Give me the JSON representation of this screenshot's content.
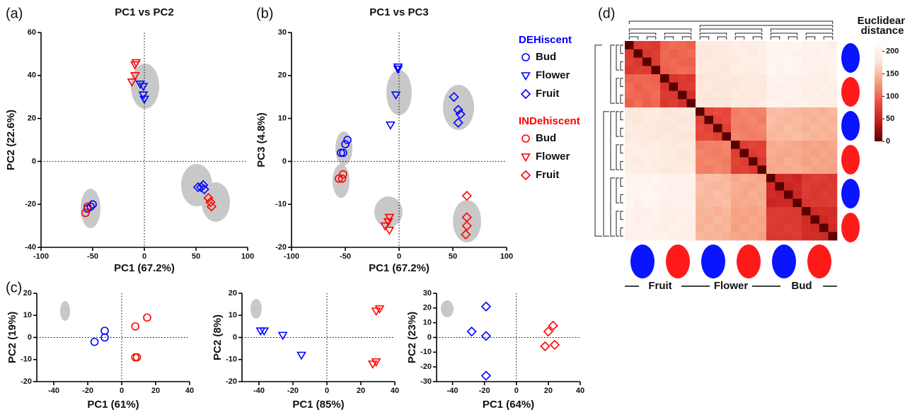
{
  "chart_data": [
    {
      "type": "scatter",
      "panel": "(a)",
      "title": "PC1 vs PC2",
      "x_label": "PC1 (67.2%)",
      "y_label": "PC2 (22.6%)",
      "xlim": [
        -100,
        100
      ],
      "xticks": [
        -100,
        -50,
        0,
        50,
        100
      ],
      "ylim": [
        -40,
        60
      ],
      "yticks": [
        -40,
        -20,
        0,
        20,
        40,
        60
      ],
      "zero_lines": true,
      "series": [
        {
          "color": "#0000ff",
          "marker": "circle",
          "x": [
            -55,
            -52,
            -50
          ],
          "y": [
            -22,
            -21,
            -20
          ]
        },
        {
          "color": "#0000ff",
          "marker": "triangle",
          "x": [
            -4,
            -1,
            -1,
            0
          ],
          "y": [
            36,
            35,
            31,
            29
          ]
        },
        {
          "color": "#0000ff",
          "marker": "diamond",
          "x": [
            52,
            55,
            57,
            58
          ],
          "y": [
            -12,
            -12,
            -11,
            -13
          ]
        },
        {
          "color": "#ff0000",
          "marker": "circle",
          "x": [
            -57,
            -55
          ],
          "y": [
            -24,
            -21
          ]
        },
        {
          "color": "#ff0000",
          "marker": "triangle",
          "x": [
            -12,
            -9,
            -9,
            -8
          ],
          "y": [
            37,
            40,
            45,
            46
          ]
        },
        {
          "color": "#ff0000",
          "marker": "diamond",
          "x": [
            62,
            64,
            65
          ],
          "y": [
            -17,
            -19,
            -21
          ]
        }
      ]
    },
    {
      "type": "scatter",
      "panel": "(b)",
      "title": "PC1 vs PC3",
      "x_label": "PC1 (67.2%)",
      "y_label": "PC3 (4.8%)",
      "xlim": [
        -100,
        100
      ],
      "xticks": [
        -100,
        -50,
        0,
        50,
        100
      ],
      "ylim": [
        -20,
        30
      ],
      "yticks": [
        -20,
        -10,
        0,
        10,
        20,
        30
      ],
      "zero_lines": true,
      "series": [
        {
          "color": "#0000ff",
          "marker": "circle",
          "x": [
            -54,
            -52,
            -50,
            -48
          ],
          "y": [
            2,
            2,
            4,
            5
          ]
        },
        {
          "color": "#0000ff",
          "marker": "triangle",
          "x": [
            -1,
            -1,
            -3,
            -8
          ],
          "y": [
            22,
            21.5,
            15.5,
            8.5
          ]
        },
        {
          "color": "#0000ff",
          "marker": "diamond",
          "x": [
            51,
            55,
            57,
            55
          ],
          "y": [
            15,
            12,
            11,
            9
          ]
        },
        {
          "color": "#ff0000",
          "marker": "circle",
          "x": [
            -56,
            -53,
            -52
          ],
          "y": [
            -4,
            -4,
            -3
          ]
        },
        {
          "color": "#ff0000",
          "marker": "triangle",
          "x": [
            -13,
            -10,
            -9,
            -9
          ],
          "y": [
            -15,
            -14,
            -16,
            -13
          ]
        },
        {
          "color": "#ff0000",
          "marker": "diamond",
          "x": [
            63,
            63,
            63,
            62
          ],
          "y": [
            -8,
            -13,
            -15,
            -17
          ]
        }
      ],
      "legend": {
        "groups": [
          {
            "title": "DEHiscent",
            "color": "#0000ff",
            "entries": [
              {
                "name": "Bud",
                "marker": "circle"
              },
              {
                "name": "Flower",
                "marker": "triangle"
              },
              {
                "name": "Fruit",
                "marker": "diamond"
              }
            ]
          },
          {
            "title": "INDehiscent",
            "color": "#ff0000",
            "entries": [
              {
                "name": "Bud",
                "marker": "circle"
              },
              {
                "name": "Flower",
                "marker": "triangle"
              },
              {
                "name": "Fruit",
                "marker": "diamond"
              }
            ]
          }
        ]
      }
    },
    {
      "type": "scatter",
      "panel": "(c)",
      "x_label": "PC1 (61%)",
      "y_label": "PC2 (19%)",
      "xlim": [
        -50,
        40
      ],
      "xticks": [
        -40,
        -20,
        0,
        20,
        40
      ],
      "ylim": [
        -20,
        20
      ],
      "yticks": [
        -20,
        -10,
        0,
        10,
        20
      ],
      "zero_lines": true,
      "series": [
        {
          "color": "#0000ff",
          "marker": "circle",
          "x": [
            -16,
            -10,
            -10
          ],
          "y": [
            -2,
            3,
            0
          ]
        },
        {
          "color": "#ff0000",
          "marker": "circle",
          "x": [
            8,
            15,
            8,
            9
          ],
          "y": [
            5,
            9,
            -9,
            -9
          ]
        }
      ]
    },
    {
      "type": "scatter",
      "x_label": "PC1 (85%)",
      "y_label": "PC2 (8%)",
      "xlim": [
        -50,
        40
      ],
      "xticks": [
        -40,
        -20,
        0,
        20,
        40
      ],
      "ylim": [
        -20,
        20
      ],
      "yticks": [
        -20,
        -10,
        0,
        10,
        20
      ],
      "zero_lines": true,
      "series": [
        {
          "color": "#0000ff",
          "marker": "triangle",
          "x": [
            -39,
            -37,
            -26,
            -15
          ],
          "y": [
            3,
            3,
            1,
            -8
          ]
        },
        {
          "color": "#ff0000",
          "marker": "triangle",
          "x": [
            29,
            31,
            27,
            29
          ],
          "y": [
            12,
            13,
            -12,
            -11
          ]
        }
      ]
    },
    {
      "type": "scatter",
      "x_label": "PC1 (64%)",
      "y_label": "PC2 (23%)",
      "xlim": [
        -50,
        40
      ],
      "xticks": [
        -40,
        -20,
        0,
        20,
        40
      ],
      "ylim": [
        -30,
        30
      ],
      "yticks": [
        -30,
        -20,
        -10,
        0,
        10,
        20,
        30
      ],
      "zero_lines": true,
      "series": [
        {
          "color": "#0000ff",
          "marker": "diamond",
          "x": [
            -28,
            -19,
            -19,
            -19
          ],
          "y": [
            4,
            21,
            1,
            -26
          ]
        },
        {
          "color": "#ff0000",
          "marker": "diamond",
          "x": [
            18,
            20,
            23,
            24
          ],
          "y": [
            -6,
            4,
            8,
            -5
          ]
        }
      ]
    },
    {
      "type": "heatmap",
      "panel": "(d)",
      "colorbar_title": [
        "Euclidean",
        "distance"
      ],
      "group_labels": [
        "Fruit",
        "Flower",
        "Bud"
      ],
      "zlim": [
        0,
        220
      ],
      "zticks": [
        0,
        50,
        100,
        150,
        200
      ],
      "colors": [
        "#5a0000",
        "#c41c1c",
        "#ec5040",
        "#f6a080",
        "#fde4d6",
        "#ffffff"
      ],
      "matrix": [
        [
          0,
          70,
          74,
          68,
          98,
          104,
          102,
          96,
          182,
          186,
          188,
          184,
          192,
          188,
          190,
          194,
          204,
          206,
          202,
          208,
          198,
          202,
          200,
          196
        ],
        [
          70,
          0,
          66,
          72,
          102,
          96,
          100,
          104,
          184,
          180,
          186,
          188,
          190,
          194,
          186,
          192,
          206,
          202,
          204,
          200,
          200,
          196,
          202,
          198
        ],
        [
          74,
          66,
          0,
          70,
          100,
          102,
          98,
          96,
          186,
          188,
          182,
          184,
          188,
          192,
          194,
          190,
          202,
          204,
          208,
          206,
          196,
          200,
          198,
          202
        ],
        [
          68,
          72,
          70,
          0,
          96,
          100,
          104,
          102,
          188,
          184,
          186,
          182,
          194,
          190,
          188,
          192,
          208,
          200,
          206,
          204,
          202,
          198,
          196,
          200
        ],
        [
          98,
          102,
          100,
          96,
          0,
          64,
          70,
          66,
          178,
          182,
          180,
          184,
          186,
          184,
          188,
          182,
          198,
          202,
          200,
          196,
          194,
          196,
          192,
          198
        ],
        [
          104,
          96,
          102,
          100,
          64,
          0,
          68,
          72,
          180,
          184,
          178,
          182,
          182,
          188,
          186,
          184,
          200,
          196,
          202,
          198,
          196,
          192,
          198,
          194
        ],
        [
          102,
          100,
          98,
          104,
          70,
          68,
          0,
          62,
          182,
          178,
          184,
          180,
          188,
          182,
          184,
          186,
          196,
          200,
          198,
          202,
          192,
          198,
          194,
          196
        ],
        [
          96,
          104,
          96,
          102,
          66,
          72,
          62,
          0,
          184,
          180,
          182,
          178,
          184,
          186,
          182,
          188,
          202,
          198,
          196,
          200,
          198,
          194,
          196,
          192
        ],
        [
          182,
          184,
          186,
          188,
          178,
          180,
          182,
          184,
          0,
          78,
          84,
          80,
          112,
          118,
          114,
          116,
          148,
          152,
          150,
          146,
          144,
          146,
          142,
          148
        ],
        [
          186,
          180,
          188,
          184,
          182,
          184,
          178,
          180,
          78,
          0,
          76,
          82,
          116,
          114,
          118,
          112,
          152,
          148,
          146,
          150,
          146,
          142,
          148,
          144
        ],
        [
          188,
          186,
          182,
          186,
          180,
          178,
          184,
          182,
          84,
          76,
          0,
          74,
          114,
          112,
          116,
          118,
          150,
          146,
          152,
          148,
          142,
          148,
          144,
          146
        ],
        [
          184,
          188,
          184,
          182,
          184,
          182,
          180,
          178,
          80,
          82,
          74,
          0,
          118,
          116,
          112,
          114,
          146,
          150,
          148,
          152,
          148,
          144,
          146,
          142
        ],
        [
          192,
          190,
          188,
          194,
          186,
          182,
          188,
          184,
          112,
          116,
          114,
          118,
          0,
          72,
          78,
          74,
          138,
          142,
          140,
          136,
          134,
          136,
          132,
          138
        ],
        [
          188,
          194,
          192,
          190,
          184,
          188,
          182,
          186,
          118,
          114,
          112,
          116,
          72,
          0,
          70,
          76,
          142,
          138,
          136,
          140,
          136,
          132,
          138,
          134
        ],
        [
          190,
          186,
          194,
          188,
          188,
          186,
          184,
          182,
          114,
          118,
          116,
          112,
          78,
          70,
          0,
          68,
          140,
          136,
          142,
          138,
          132,
          138,
          134,
          136
        ],
        [
          194,
          192,
          190,
          192,
          182,
          184,
          186,
          188,
          116,
          112,
          118,
          114,
          74,
          76,
          68,
          0,
          136,
          140,
          138,
          142,
          138,
          134,
          136,
          132
        ],
        [
          204,
          206,
          202,
          208,
          198,
          200,
          196,
          202,
          148,
          152,
          150,
          146,
          138,
          142,
          140,
          136,
          0,
          54,
          58,
          52,
          68,
          72,
          70,
          66
        ],
        [
          206,
          202,
          204,
          200,
          202,
          196,
          200,
          198,
          152,
          148,
          146,
          150,
          142,
          138,
          136,
          140,
          54,
          0,
          52,
          56,
          72,
          68,
          66,
          70
        ],
        [
          202,
          204,
          208,
          206,
          200,
          202,
          198,
          196,
          150,
          146,
          152,
          148,
          140,
          136,
          142,
          138,
          58,
          52,
          0,
          54,
          70,
          66,
          72,
          68
        ],
        [
          208,
          200,
          206,
          204,
          196,
          198,
          202,
          200,
          146,
          150,
          148,
          152,
          136,
          140,
          138,
          142,
          52,
          56,
          54,
          0,
          66,
          70,
          68,
          72
        ],
        [
          198,
          200,
          196,
          202,
          194,
          196,
          192,
          198,
          144,
          146,
          142,
          148,
          134,
          136,
          132,
          138,
          68,
          72,
          70,
          66,
          0,
          56,
          60,
          58
        ],
        [
          202,
          196,
          200,
          198,
          196,
          192,
          198,
          194,
          146,
          142,
          148,
          144,
          136,
          132,
          138,
          134,
          72,
          68,
          66,
          70,
          56,
          0,
          54,
          60
        ],
        [
          200,
          202,
          198,
          196,
          192,
          198,
          194,
          196,
          142,
          148,
          144,
          146,
          132,
          138,
          134,
          136,
          70,
          66,
          72,
          68,
          60,
          54,
          0,
          56
        ],
        [
          196,
          198,
          202,
          200,
          198,
          194,
          196,
          192,
          148,
          144,
          146,
          142,
          138,
          134,
          136,
          132,
          66,
          70,
          68,
          72,
          58,
          60,
          56,
          0
        ]
      ]
    }
  ]
}
